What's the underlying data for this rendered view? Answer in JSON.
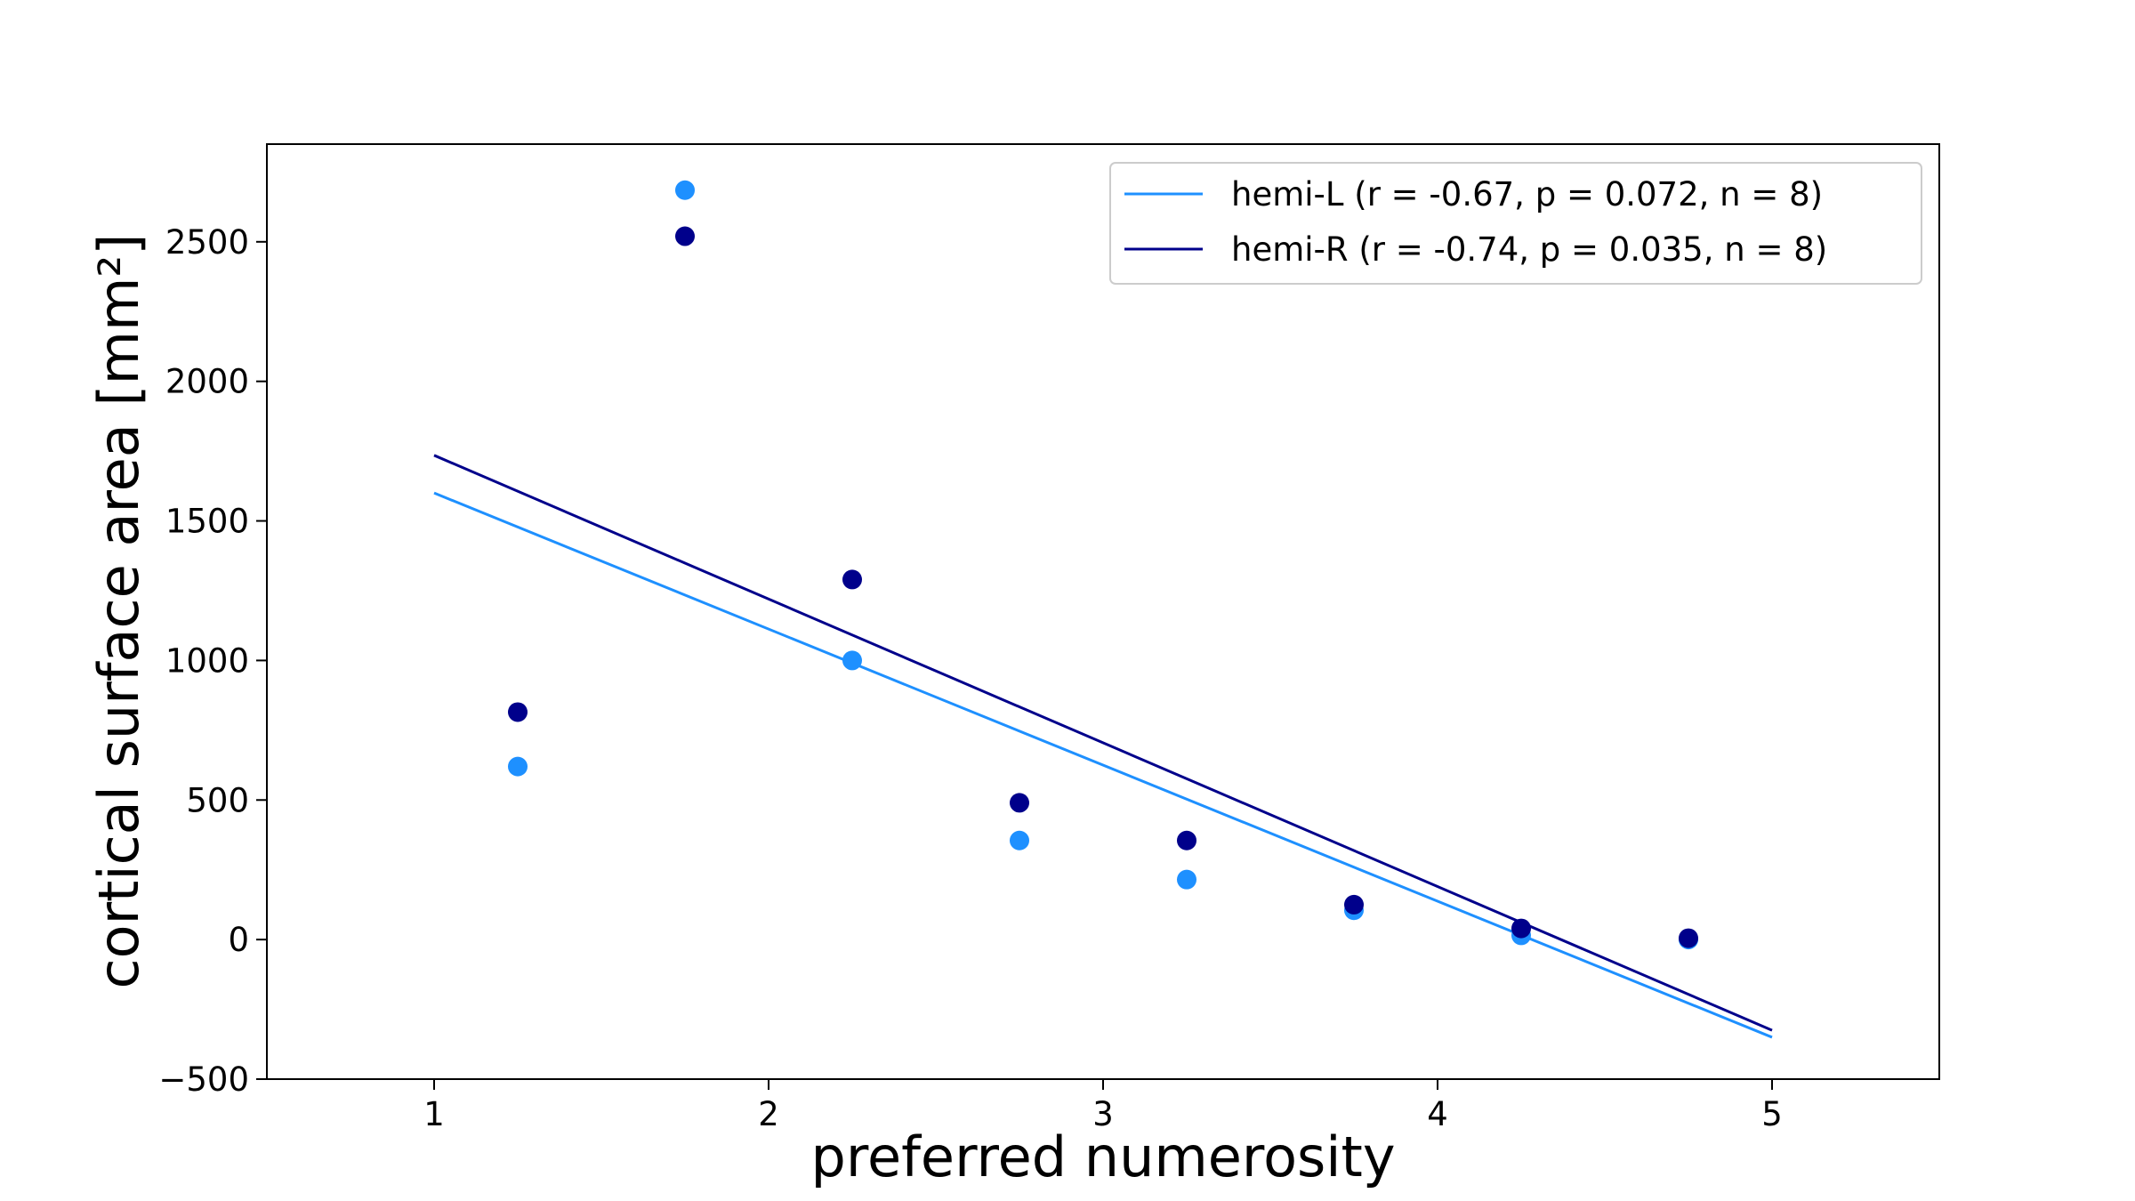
{
  "chart_data": {
    "type": "scatter",
    "title": "",
    "xlabel": "preferred numerosity",
    "ylabel": "cortical surface area [mm²]",
    "xlim": [
      0.5,
      5.5
    ],
    "ylim": [
      -500,
      2850
    ],
    "x_ticks": [
      1,
      2,
      3,
      4,
      5
    ],
    "y_ticks": [
      -500,
      0,
      500,
      1000,
      1500,
      2000,
      2500
    ],
    "x_tick_labels": [
      "1",
      "2",
      "3",
      "4",
      "5"
    ],
    "y_tick_labels": [
      "−500",
      "0",
      "500",
      "1000",
      "1500",
      "2000",
      "2500"
    ],
    "grid": false,
    "legend_position": "top-right",
    "series": [
      {
        "name": "hemi-L (r = -0.67, p = 0.072, n = 8)",
        "color": "#1e90ff",
        "x": [
          1.25,
          1.75,
          2.25,
          2.75,
          3.25,
          3.75,
          4.25,
          4.75
        ],
        "y": [
          620,
          2685,
          1000,
          355,
          215,
          105,
          15,
          0
        ],
        "fit_line": {
          "x": [
            1,
            5
          ],
          "y": [
            1600,
            -350
          ]
        }
      },
      {
        "name": "hemi-R (r = -0.74, p = 0.035, n = 8)",
        "color": "#00008b",
        "x": [
          1.25,
          1.75,
          2.25,
          2.75,
          3.25,
          3.75,
          4.25,
          4.75
        ],
        "y": [
          815,
          2520,
          1290,
          490,
          355,
          125,
          40,
          5
        ],
        "fit_line": {
          "x": [
            1,
            5
          ],
          "y": [
            1735,
            -325
          ]
        }
      }
    ]
  }
}
